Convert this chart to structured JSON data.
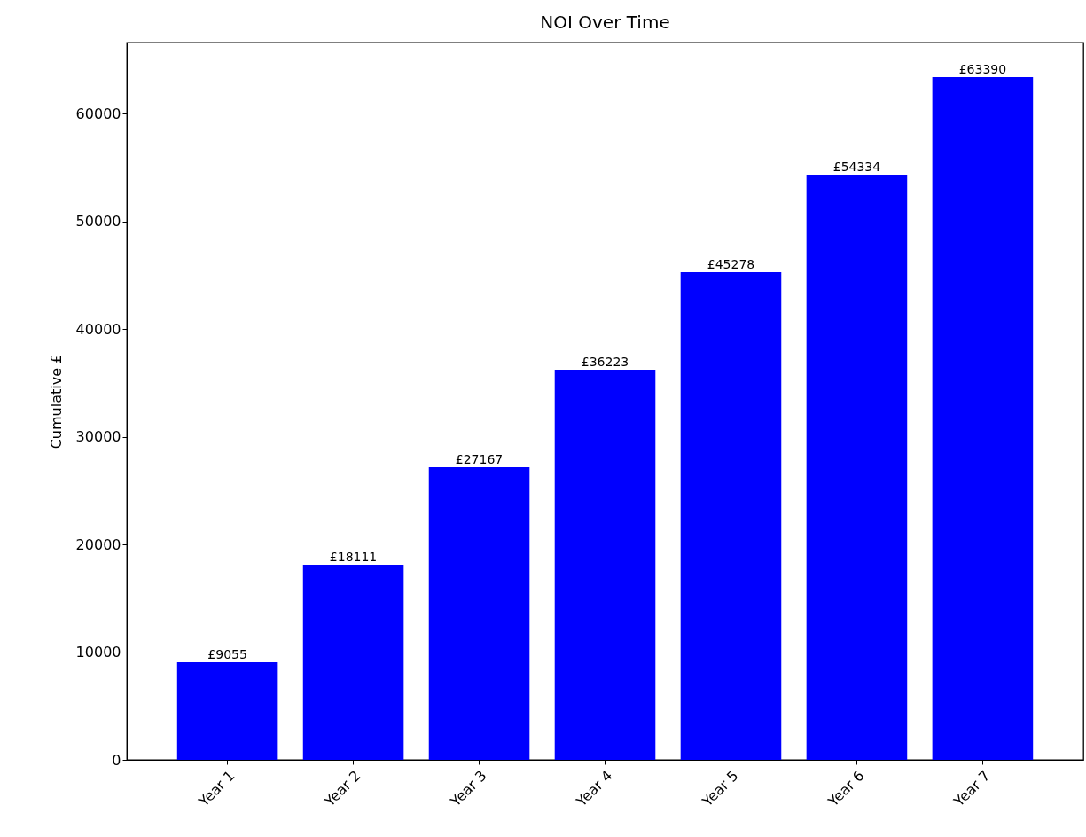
{
  "chart_data": {
    "type": "bar",
    "title": "NOI Over Time",
    "ylabel": "Cumulative £",
    "categories": [
      "Year 1",
      "Year 2",
      "Year 3",
      "Year 4",
      "Year 5",
      "Year 6",
      "Year 7"
    ],
    "values": [
      9055,
      18111,
      27167,
      36223,
      45278,
      54334,
      63390
    ],
    "value_labels": [
      "£9055",
      "£18111",
      "£27167",
      "£36223",
      "£45278",
      "£54334",
      "£63390"
    ],
    "color": "#0000ff",
    "ylim": [
      0,
      66600
    ],
    "yticks": [
      0,
      10000,
      20000,
      30000,
      40000,
      50000,
      60000
    ],
    "grid": false
  }
}
